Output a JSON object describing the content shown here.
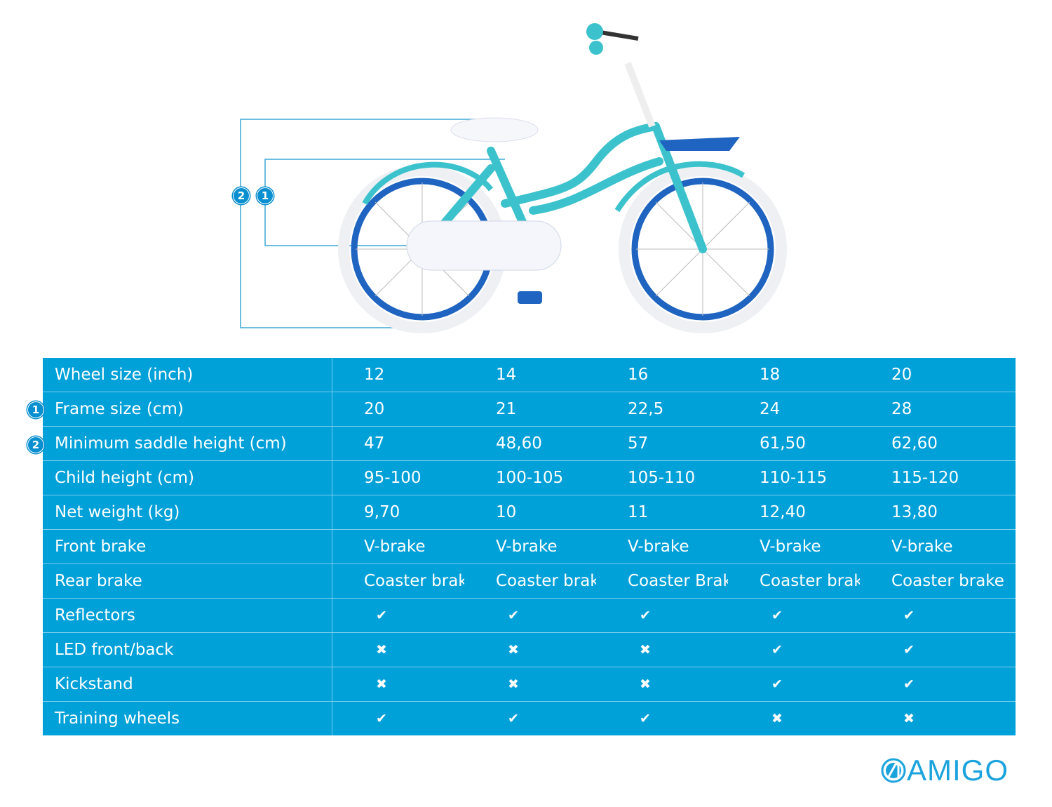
{
  "diagram": {
    "badges": [
      "1",
      "2"
    ]
  },
  "table": {
    "rows": [
      {
        "marker": "",
        "label": "Wheel size (inch)",
        "values": [
          "12",
          "14",
          "16",
          "18",
          "20"
        ]
      },
      {
        "marker": "1",
        "label": "Frame size (cm)",
        "values": [
          "20",
          "21",
          "22,5",
          "24",
          "28"
        ]
      },
      {
        "marker": "2",
        "label": "Minimum saddle height (cm)",
        "values": [
          "47",
          "48,60",
          "57",
          "61,50",
          "62,60"
        ]
      },
      {
        "marker": "",
        "label": "Child height (cm)",
        "values": [
          "95-100",
          "100-105",
          "105-110",
          "110-115",
          "115-120"
        ]
      },
      {
        "marker": "",
        "label": "Net weight (kg)",
        "values": [
          "9,70",
          "10",
          "11",
          "12,40",
          "13,80"
        ]
      },
      {
        "marker": "",
        "label": "Front brake",
        "values": [
          "V-brake",
          "V-brake",
          "V-brake",
          "V-brake",
          "V-brake"
        ]
      },
      {
        "marker": "",
        "label": "Rear brake",
        "values": [
          "Coaster brak",
          "Coaster brake",
          "Coaster Brake",
          "Coaster brake",
          "Coaster brake"
        ]
      },
      {
        "marker": "",
        "label": "Reflectors",
        "icons": [
          "check",
          "check",
          "check",
          "check",
          "check"
        ]
      },
      {
        "marker": "",
        "label": "LED front/back",
        "icons": [
          "cross",
          "cross",
          "cross",
          "check",
          "check"
        ]
      },
      {
        "marker": "",
        "label": "Kickstand",
        "icons": [
          "cross",
          "cross",
          "cross",
          "check",
          "check"
        ]
      },
      {
        "marker": "",
        "label": "Training wheels",
        "icons": [
          "check",
          "check",
          "check",
          "cross",
          "cross"
        ]
      }
    ]
  },
  "logo": {
    "text": "AMIGO",
    "color": "#1ba3dd"
  },
  "colors": {
    "table_bg": "#00a0d8",
    "accent": "#0a8fd0"
  }
}
